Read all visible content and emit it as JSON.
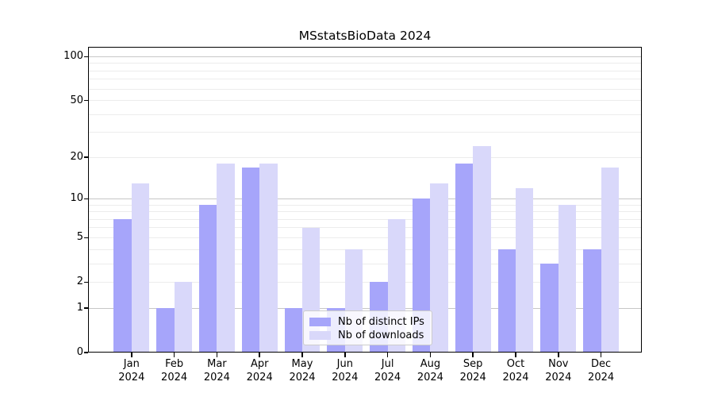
{
  "figure": {
    "title": "MSstatsBioData 2024"
  },
  "chart_data": {
    "type": "bar",
    "title": "MSstatsBioData 2024",
    "categories": [
      "Jan",
      "Feb",
      "Mar",
      "Apr",
      "May",
      "Jun",
      "Jul",
      "Aug",
      "Sep",
      "Oct",
      "Nov",
      "Dec"
    ],
    "x_tick_year": "2024",
    "series": [
      {
        "name": "Nb of distinct IPs",
        "color": "#a6a5fa",
        "values": [
          7,
          1,
          9,
          17,
          1,
          1,
          2,
          10,
          18,
          4,
          3,
          4
        ]
      },
      {
        "name": "Nb of downloads",
        "color": "#d9d8fa",
        "values": [
          13,
          2,
          18,
          18,
          6,
          4,
          7,
          13,
          24,
          12,
          9,
          17
        ]
      }
    ],
    "xlabel": "",
    "ylabel": "",
    "yscale": "log10(1+x)",
    "yticks": [
      0,
      1,
      2,
      5,
      10,
      20,
      50,
      100
    ],
    "ylim": [
      0,
      117
    ],
    "grid_major": [
      1,
      10,
      100
    ],
    "grid_minor": [
      2,
      3,
      4,
      5,
      6,
      7,
      8,
      9,
      20,
      30,
      40,
      50,
      60,
      70,
      80,
      90
    ],
    "grid_on": true,
    "legend_position": "lower center",
    "colors": {
      "grid_major": "#c7c7c7",
      "grid_minor": "#ececec",
      "spine": "#000000",
      "background": "#ffffff"
    }
  }
}
